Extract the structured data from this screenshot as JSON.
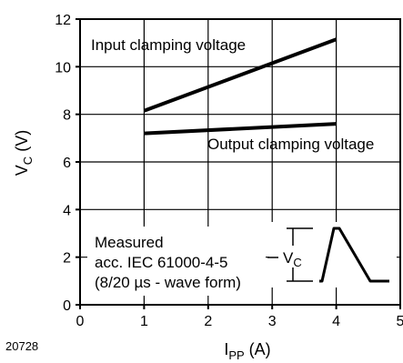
{
  "figure_id": "20728",
  "chart_data": {
    "type": "line",
    "xlabel": {
      "main": "I",
      "sub": "PP",
      "unit": " (A)"
    },
    "ylabel": {
      "main": "V",
      "sub": "C",
      "unit": " (V)"
    },
    "xlim": [
      0,
      5
    ],
    "ylim": [
      0,
      12
    ],
    "xticks": [
      "0",
      "1",
      "2",
      "3",
      "4",
      "5"
    ],
    "yticks": [
      "0",
      "2",
      "4",
      "6",
      "8",
      "10",
      "12"
    ],
    "grid": true,
    "series": [
      {
        "name": "Input clamping voltage",
        "x": [
          1,
          4
        ],
        "y": [
          8.15,
          11.15
        ],
        "color": "#000000"
      },
      {
        "name": "Output clamping voltage",
        "x": [
          1,
          4
        ],
        "y": [
          7.2,
          7.6
        ],
        "color": "#000000"
      }
    ],
    "annotations": {
      "measured_lines": [
        "Measured",
        "acc. IEC 61000-4-5",
        "(8/20 µs - wave form)"
      ],
      "waveform_label": {
        "main": "V",
        "sub": "C"
      }
    }
  }
}
